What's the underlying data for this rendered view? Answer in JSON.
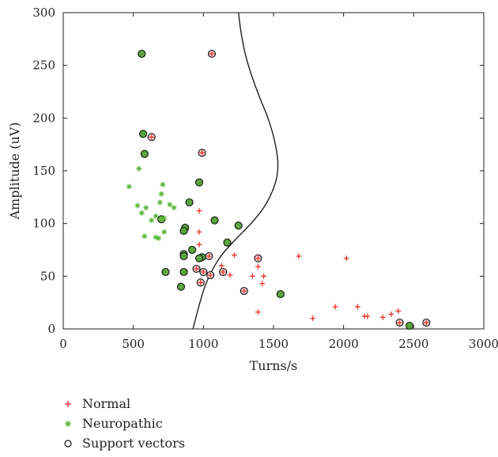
{
  "chart_data": {
    "type": "scatter",
    "title": "",
    "xlabel": "Turns/s",
    "ylabel": "Amplitude (uV)",
    "xlim": [
      0,
      3000
    ],
    "ylim": [
      0,
      300
    ],
    "xticks": [
      0,
      500,
      1000,
      1500,
      2000,
      2500,
      3000
    ],
    "yticks": [
      0,
      50,
      100,
      150,
      200,
      250,
      300
    ],
    "legend_position": "below",
    "series": [
      {
        "name": "Normal",
        "marker": "plus",
        "color": "#e8332b",
        "points": [
          [
            630,
            182
          ],
          [
            1060,
            261
          ],
          [
            990,
            167
          ],
          [
            970,
            112
          ],
          [
            970,
            92
          ],
          [
            970,
            80
          ],
          [
            1040,
            69
          ],
          [
            950,
            57
          ],
          [
            1000,
            54
          ],
          [
            1130,
            60
          ],
          [
            1220,
            70
          ],
          [
            1190,
            51
          ],
          [
            1140,
            54
          ],
          [
            1050,
            51
          ],
          [
            980,
            44
          ],
          [
            1290,
            36
          ],
          [
            1350,
            50
          ],
          [
            1430,
            50
          ],
          [
            1420,
            43
          ],
          [
            1390,
            67
          ],
          [
            1390,
            59
          ],
          [
            1390,
            16
          ],
          [
            1680,
            69
          ],
          [
            2020,
            67
          ],
          [
            1780,
            10
          ],
          [
            1940,
            21
          ],
          [
            2100,
            21
          ],
          [
            2150,
            12
          ],
          [
            2170,
            12
          ],
          [
            2280,
            11
          ],
          [
            2340,
            14
          ],
          [
            2390,
            17
          ],
          [
            2400,
            6
          ],
          [
            2590,
            6
          ]
        ]
      },
      {
        "name": "Neuropathic",
        "marker": "asterisk",
        "color": "#5cb83c",
        "points": [
          [
            470,
            135
          ],
          [
            540,
            152
          ],
          [
            530,
            117
          ],
          [
            560,
            110
          ],
          [
            590,
            115
          ],
          [
            580,
            88
          ],
          [
            630,
            103
          ],
          [
            660,
            87
          ],
          [
            680,
            86
          ],
          [
            660,
            107
          ],
          [
            690,
            120
          ],
          [
            700,
            128
          ],
          [
            710,
            137
          ],
          [
            720,
            92
          ],
          [
            720,
            105
          ],
          [
            760,
            118
          ],
          [
            790,
            115
          ],
          [
            700,
            104
          ]
        ]
      },
      {
        "name": "Support vectors",
        "marker": "circle",
        "color": "#111111",
        "points": [
          [
            560,
            261
          ],
          [
            570,
            185
          ],
          [
            580,
            166
          ],
          [
            630,
            182
          ],
          [
            1060,
            261
          ],
          [
            990,
            167
          ],
          [
            970,
            139
          ],
          [
            900,
            120
          ],
          [
            870,
            96
          ],
          [
            860,
            93
          ],
          [
            860,
            71
          ],
          [
            860,
            69
          ],
          [
            920,
            75
          ],
          [
            990,
            68
          ],
          [
            1040,
            69
          ],
          [
            1080,
            103
          ],
          [
            1170,
            82
          ],
          [
            1250,
            98
          ],
          [
            730,
            54
          ],
          [
            860,
            54
          ],
          [
            950,
            57
          ],
          [
            1000,
            54
          ],
          [
            840,
            40
          ],
          [
            980,
            44
          ],
          [
            1050,
            51
          ],
          [
            1140,
            54
          ],
          [
            1290,
            36
          ],
          [
            1390,
            67
          ],
          [
            1550,
            33
          ],
          [
            2400,
            6
          ],
          [
            2470,
            3
          ],
          [
            2590,
            6
          ],
          [
            700,
            104
          ],
          [
            970,
            67
          ]
        ]
      }
    ],
    "boundary": [
      [
        1250,
        300
      ],
      [
        1270,
        280
      ],
      [
        1300,
        260
      ],
      [
        1345,
        240
      ],
      [
        1400,
        220
      ],
      [
        1460,
        200
      ],
      [
        1505,
        180
      ],
      [
        1530,
        160
      ],
      [
        1525,
        145
      ],
      [
        1490,
        130
      ],
      [
        1430,
        115
      ],
      [
        1340,
        100
      ],
      [
        1230,
        85
      ],
      [
        1130,
        70
      ],
      [
        1060,
        55
      ],
      [
        1010,
        40
      ],
      [
        975,
        25
      ],
      [
        945,
        10
      ],
      [
        925,
        0
      ]
    ]
  },
  "legend": {
    "items": [
      {
        "label": "Normal"
      },
      {
        "label": "Neuropathic"
      },
      {
        "label": "Support vectors"
      }
    ]
  }
}
